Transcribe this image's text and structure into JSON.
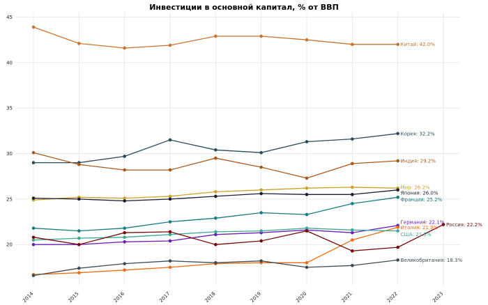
{
  "chart_data": {
    "type": "line",
    "title": "Инвестиции в основной капитал, % от ВВП",
    "xlabel": "",
    "ylabel": "",
    "x": [
      2014,
      2015,
      2016,
      2017,
      2018,
      2019,
      2020,
      2021,
      2022,
      2023
    ],
    "xlim": [
      2014,
      2023
    ],
    "ylim": [
      15.5,
      45.5
    ],
    "yticks": [
      20,
      25,
      30,
      35,
      40,
      45
    ],
    "grid": true,
    "legend": "none",
    "series": [
      {
        "name": "Китай",
        "label": "Китай: 42.0%",
        "color": "#c87431",
        "x": [
          2014,
          2015,
          2016,
          2017,
          2018,
          2019,
          2020,
          2021,
          2022
        ],
        "values": [
          43.9,
          42.1,
          41.6,
          41.9,
          42.9,
          42.9,
          42.5,
          42.0,
          42.0
        ]
      },
      {
        "name": "Корея",
        "label": "Корея: 32.2%",
        "color": "#274a5c",
        "x": [
          2014,
          2015,
          2016,
          2017,
          2018,
          2019,
          2020,
          2021,
          2022
        ],
        "values": [
          29.0,
          29.0,
          29.7,
          31.5,
          30.4,
          30.1,
          31.3,
          31.6,
          32.2
        ]
      },
      {
        "name": "Индия",
        "label": "Индия: 29.2%",
        "color": "#a8591d",
        "x": [
          2014,
          2015,
          2016,
          2017,
          2018,
          2019,
          2020,
          2021,
          2022
        ],
        "values": [
          30.1,
          28.8,
          28.2,
          28.2,
          29.5,
          28.5,
          27.3,
          28.9,
          29.2
        ]
      },
      {
        "name": "Мир",
        "label": "Мир: 26.2%",
        "color": "#c9a227",
        "x": [
          2014,
          2015,
          2016,
          2017,
          2018,
          2019,
          2020,
          2021,
          2022
        ],
        "values": [
          24.9,
          25.2,
          25.1,
          25.3,
          25.8,
          26.0,
          26.2,
          26.3,
          26.2
        ]
      },
      {
        "name": "Япония",
        "label": "Япония: 26.0%",
        "color": "#1c1c32",
        "x": [
          2014,
          2015,
          2016,
          2017,
          2018,
          2019,
          2020,
          2021,
          2022
        ],
        "values": [
          25.1,
          25.0,
          24.8,
          25.0,
          25.3,
          25.6,
          25.5,
          25.5,
          26.0
        ]
      },
      {
        "name": "Франция",
        "label": "Франция: 25.2%",
        "color": "#167a80",
        "x": [
          2014,
          2015,
          2016,
          2017,
          2018,
          2019,
          2020,
          2021,
          2022
        ],
        "values": [
          21.8,
          21.5,
          21.8,
          22.5,
          22.9,
          23.5,
          23.3,
          24.5,
          25.2
        ]
      },
      {
        "name": "Германия",
        "label": "Германия: 22.1%",
        "color": "#6a1fb8",
        "x": [
          2014,
          2015,
          2016,
          2017,
          2018,
          2019,
          2020,
          2021,
          2022
        ],
        "values": [
          20.0,
          20.0,
          20.3,
          20.4,
          21.1,
          21.3,
          21.6,
          21.3,
          22.1
        ]
      },
      {
        "name": "Италия",
        "label": "Италия: 21.9%",
        "color": "#f06a14",
        "x": [
          2014,
          2015,
          2016,
          2017,
          2018,
          2019,
          2020,
          2021,
          2022
        ],
        "values": [
          16.7,
          16.9,
          17.2,
          17.5,
          17.9,
          18.0,
          18.0,
          20.5,
          21.9
        ]
      },
      {
        "name": "США",
        "label": "США: 21.5%",
        "color": "#3aa896",
        "x": [
          2014,
          2015,
          2016,
          2017,
          2018,
          2019,
          2020,
          2021,
          2022
        ],
        "values": [
          20.5,
          20.7,
          20.8,
          21.1,
          21.4,
          21.5,
          21.8,
          21.6,
          21.5
        ]
      },
      {
        "name": "Россия",
        "label": "Россия: 22.2%",
        "color": "#7a0a0a",
        "x": [
          2014,
          2015,
          2016,
          2017,
          2018,
          2019,
          2020,
          2021,
          2022,
          2023
        ],
        "values": [
          20.8,
          20.0,
          21.3,
          21.4,
          20.0,
          20.4,
          21.5,
          19.3,
          19.7,
          22.2
        ]
      },
      {
        "name": "Великобритания",
        "label": "Великобритания: 18.3%",
        "color": "#3c4a54",
        "x": [
          2014,
          2015,
          2016,
          2017,
          2018,
          2019,
          2020,
          2021,
          2022
        ],
        "values": [
          16.6,
          17.4,
          17.9,
          18.2,
          18.0,
          18.2,
          17.5,
          17.7,
          18.3
        ]
      }
    ]
  }
}
